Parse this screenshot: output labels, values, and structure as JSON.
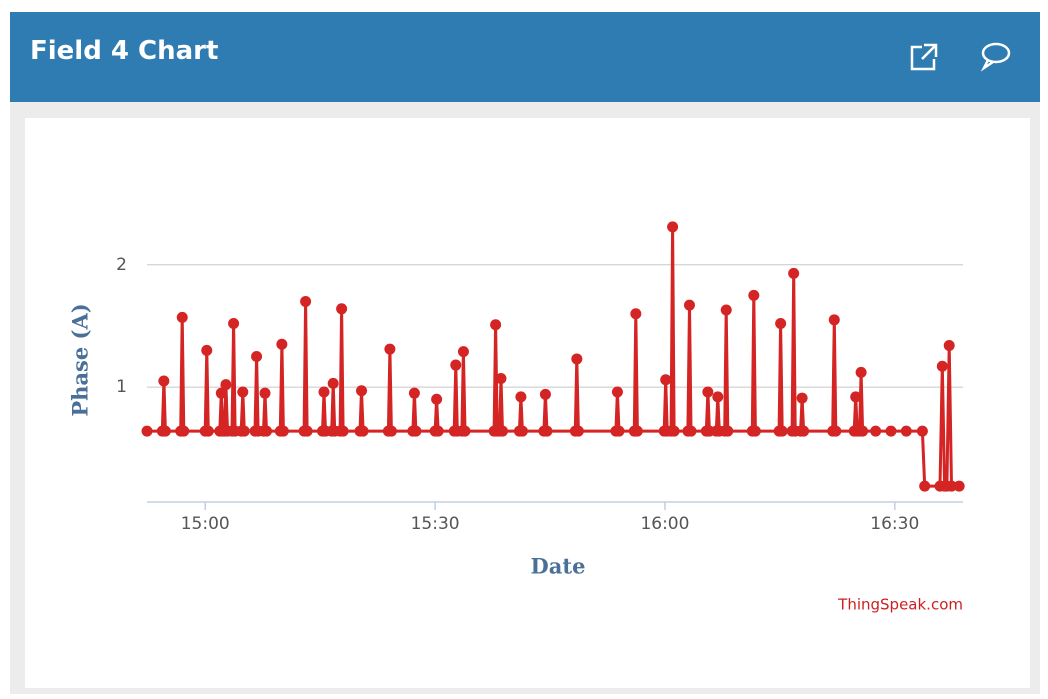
{
  "header": {
    "title": "Field 4 Chart"
  },
  "chart_data": {
    "type": "line",
    "xlabel": "Date",
    "ylabel": "Phase (A)",
    "credit": "ThingSpeak.com",
    "color": "#d42424",
    "xlim": [
      892.4,
      998.9
    ],
    "xticks": [
      {
        "value": 900,
        "label": "15:00"
      },
      {
        "value": 930,
        "label": "15:30"
      },
      {
        "value": 960,
        "label": "16:00"
      },
      {
        "value": 990,
        "label": "16:30"
      }
    ],
    "ylim": [
      0.06,
      2.35
    ],
    "yticks": [
      1,
      2
    ],
    "grid": true,
    "x": [
      892.4,
      894.4,
      894.6,
      894.8,
      896.8,
      897.0,
      897.2,
      900.0,
      900.2,
      900.4,
      901.9,
      902.1,
      902.3,
      902.5,
      902.7,
      902.9,
      903.5,
      903.7,
      903.9,
      904.7,
      904.9,
      905.1,
      906.5,
      906.7,
      906.9,
      907.6,
      907.8,
      908.0,
      909.8,
      910.0,
      910.2,
      912.9,
      913.1,
      913.3,
      915.3,
      915.5,
      915.7,
      916.5,
      916.7,
      916.9,
      917.6,
      917.8,
      918.0,
      920.2,
      920.4,
      920.6,
      923.9,
      924.1,
      924.3,
      927.1,
      927.3,
      927.5,
      930.0,
      930.2,
      930.4,
      932.5,
      932.7,
      932.9,
      933.5,
      933.7,
      933.9,
      937.7,
      937.9,
      938.1,
      938.4,
      938.6,
      938.8,
      941.0,
      941.2,
      941.4,
      944.2,
      944.4,
      944.6,
      948.3,
      948.5,
      948.7,
      953.6,
      953.8,
      954.0,
      956.0,
      956.2,
      956.4,
      959.9,
      960.1,
      960.3,
      960.8,
      961.0,
      961.2,
      963.0,
      963.2,
      963.4,
      965.4,
      965.6,
      965.8,
      966.7,
      966.9,
      967.1,
      967.8,
      968.0,
      968.2,
      971.4,
      971.6,
      971.8,
      974.9,
      975.1,
      975.3,
      976.6,
      976.8,
      977.0,
      977.7,
      977.9,
      978.1,
      981.9,
      982.1,
      982.3,
      984.7,
      984.9,
      985.1,
      985.4,
      985.6,
      985.8,
      987.5,
      989.5,
      991.5,
      993.6,
      993.9,
      995.9,
      996.2,
      996.5,
      996.8,
      997.1,
      997.4,
      998.4
    ],
    "values": [
      0.64,
      0.64,
      1.05,
      0.64,
      0.64,
      1.57,
      0.64,
      0.64,
      1.3,
      0.64,
      0.64,
      0.95,
      0.64,
      0.64,
      1.02,
      0.64,
      0.64,
      1.52,
      0.64,
      0.64,
      0.96,
      0.64,
      0.64,
      1.25,
      0.64,
      0.64,
      0.95,
      0.64,
      0.64,
      1.35,
      0.64,
      0.64,
      1.7,
      0.64,
      0.64,
      0.96,
      0.64,
      0.64,
      1.03,
      0.64,
      0.64,
      1.64,
      0.64,
      0.64,
      0.97,
      0.64,
      0.64,
      1.31,
      0.64,
      0.64,
      0.95,
      0.64,
      0.64,
      0.9,
      0.64,
      0.64,
      1.18,
      0.64,
      0.64,
      1.29,
      0.64,
      0.64,
      1.51,
      0.64,
      0.64,
      1.07,
      0.64,
      0.64,
      0.92,
      0.64,
      0.64,
      0.94,
      0.64,
      0.64,
      1.23,
      0.64,
      0.64,
      0.96,
      0.64,
      0.64,
      1.6,
      0.64,
      0.64,
      1.06,
      0.64,
      0.64,
      2.31,
      0.64,
      0.64,
      1.67,
      0.64,
      0.64,
      0.96,
      0.64,
      0.64,
      0.92,
      0.64,
      0.64,
      1.63,
      0.64,
      0.64,
      1.75,
      0.64,
      0.64,
      1.52,
      0.64,
      0.64,
      1.93,
      0.64,
      0.64,
      0.91,
      0.64,
      0.64,
      1.55,
      0.64,
      0.64,
      0.92,
      0.64,
      0.64,
      1.12,
      0.64,
      0.64,
      0.64,
      0.64,
      0.64,
      0.19,
      0.19,
      1.17,
      0.19,
      0.19,
      1.34,
      0.19,
      0.19
    ]
  }
}
